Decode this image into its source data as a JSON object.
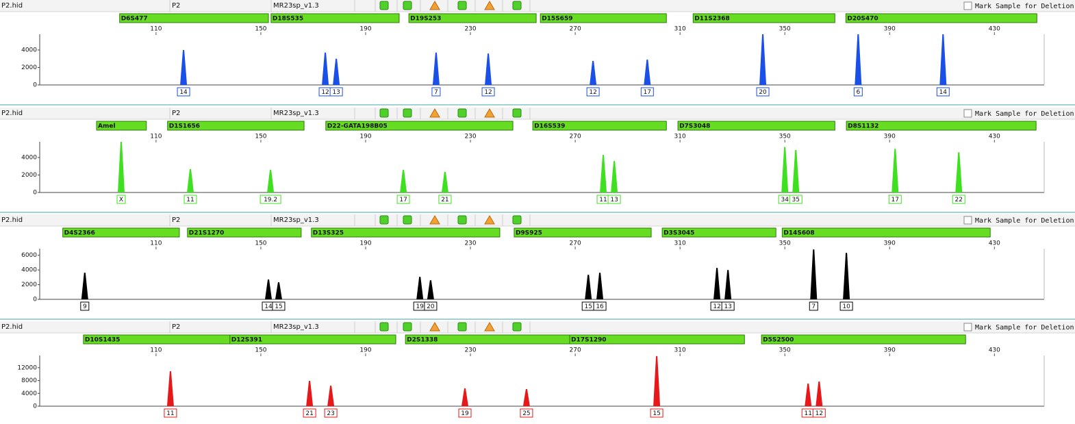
{
  "chart_data": [
    {
      "type": "peaks",
      "file": "P2.hid",
      "sample": "P2",
      "panel": "MR23sp_v1.3",
      "checkbox_label": "Mark Sample for Deletion",
      "color": "#1a4fe8",
      "markers": [
        {
          "name": "D6S477",
          "start": 96.1,
          "end": 152.9
        },
        {
          "name": "D18S535",
          "start": 153.9,
          "end": 202.8
        },
        {
          "name": "D19S253",
          "start": 206.5,
          "end": 255.1
        },
        {
          "name": "D15S659",
          "start": 256.7,
          "end": 304.8
        },
        {
          "name": "D11S2368",
          "start": 315.0,
          "end": 369.1
        },
        {
          "name": "D20S470",
          "start": 373.3,
          "end": 446.2
        }
      ],
      "xlim": [
        65.6,
        449
      ],
      "xticks": [
        110,
        150,
        190,
        230,
        270,
        310,
        350,
        390,
        430
      ],
      "ylim": [
        0,
        5800
      ],
      "yticks": [
        0,
        2000,
        4000
      ],
      "peaks": [
        {
          "x": 120.5,
          "height": 4000,
          "allele": "14"
        },
        {
          "x": 174.6,
          "height": 3700,
          "allele": "12"
        },
        {
          "x": 178.8,
          "height": 3000,
          "allele": "13"
        },
        {
          "x": 216.9,
          "height": 3700,
          "allele": "7"
        },
        {
          "x": 236.8,
          "height": 3600,
          "allele": "12"
        },
        {
          "x": 276.8,
          "height": 2750,
          "allele": "12"
        },
        {
          "x": 297.5,
          "height": 2900,
          "allele": "17"
        },
        {
          "x": 341.6,
          "height": 5800,
          "allele": "20"
        },
        {
          "x": 378.0,
          "height": 5800,
          "allele": "6"
        },
        {
          "x": 410.4,
          "height": 5800,
          "allele": "14"
        }
      ]
    },
    {
      "type": "peaks",
      "file": "P2.hid",
      "sample": "P2",
      "panel": "MR23sp_v1.3",
      "checkbox_label": "Mark Sample for Deletion",
      "color": "#3fe020",
      "markers": [
        {
          "name": "Amel",
          "start": 87.3,
          "end": 106.3
        },
        {
          "name": "D1S1656",
          "start": 114.4,
          "end": 166.5
        },
        {
          "name": "D22-GATA198B05",
          "start": 174.8,
          "end": 246.2
        },
        {
          "name": "D16S539",
          "start": 253.8,
          "end": 304.8
        },
        {
          "name": "D7S3048",
          "start": 309.2,
          "end": 369.1
        },
        {
          "name": "D8S1132",
          "start": 373.5,
          "end": 445.9
        }
      ],
      "xlim": [
        65.6,
        449
      ],
      "xticks": [
        110,
        150,
        190,
        230,
        270,
        310,
        350,
        390,
        430
      ],
      "ylim": [
        0,
        5800
      ],
      "yticks": [
        0,
        2000,
        4000
      ],
      "peaks": [
        {
          "x": 96.7,
          "height": 5800,
          "allele": "X"
        },
        {
          "x": 123.1,
          "height": 2670,
          "allele": "11"
        },
        {
          "x": 153.7,
          "height": 2600,
          "allele": "19.2"
        },
        {
          "x": 204.4,
          "height": 2600,
          "allele": "17"
        },
        {
          "x": 220.3,
          "height": 2350,
          "allele": "21"
        },
        {
          "x": 280.7,
          "height": 4300,
          "allele": "11"
        },
        {
          "x": 284.9,
          "height": 3600,
          "allele": "13"
        },
        {
          "x": 350.0,
          "height": 5200,
          "allele": "34"
        },
        {
          "x": 354.2,
          "height": 4860,
          "allele": "35"
        },
        {
          "x": 392.1,
          "height": 5000,
          "allele": "17"
        },
        {
          "x": 416.4,
          "height": 4600,
          "allele": "22"
        }
      ]
    },
    {
      "type": "peaks",
      "file": "P2.hid",
      "sample": "P2",
      "panel": "MR23sp_v1.3",
      "checkbox_label": "Mark Sample for Deletion",
      "color": "#000000",
      "markers": [
        {
          "name": "D4S2366",
          "start": 74.4,
          "end": 118.9
        },
        {
          "name": "D21S1270",
          "start": 122.0,
          "end": 165.4
        },
        {
          "name": "D13S325",
          "start": 169.3,
          "end": 241.2
        },
        {
          "name": "D9S925",
          "start": 246.7,
          "end": 299.0
        },
        {
          "name": "D3S3045",
          "start": 303.2,
          "end": 346.6
        },
        {
          "name": "D14S608",
          "start": 349.0,
          "end": 428.4
        }
      ],
      "xlim": [
        65.6,
        449
      ],
      "xticks": [
        110,
        150,
        190,
        230,
        270,
        310,
        350,
        390,
        430
      ],
      "ylim": [
        0,
        6900
      ],
      "yticks": [
        0,
        2000,
        4000,
        6000
      ],
      "peaks": [
        {
          "x": 82.8,
          "height": 3630,
          "allele": "9"
        },
        {
          "x": 152.9,
          "height": 2700,
          "allele": "14"
        },
        {
          "x": 156.8,
          "height": 2330,
          "allele": "15"
        },
        {
          "x": 210.7,
          "height": 3070,
          "allele": "19"
        },
        {
          "x": 214.8,
          "height": 2600,
          "allele": "20"
        },
        {
          "x": 275.0,
          "height": 3350,
          "allele": "15"
        },
        {
          "x": 279.4,
          "height": 3630,
          "allele": "16"
        },
        {
          "x": 324.1,
          "height": 4280,
          "allele": "12"
        },
        {
          "x": 328.3,
          "height": 4000,
          "allele": "13"
        },
        {
          "x": 361.0,
          "height": 6790,
          "allele": "7"
        },
        {
          "x": 373.5,
          "height": 6330,
          "allele": "10"
        }
      ]
    },
    {
      "type": "peaks",
      "file": "P2.hid",
      "sample": "P2",
      "panel": "MR23sp_v1.3",
      "checkbox_label": "Mark Sample for Deletion",
      "color": "#e8181a",
      "markers": [
        {
          "name": "D10S1435",
          "start": 82.3,
          "end": 138.2
        },
        {
          "name": "D12S391",
          "start": 138.2,
          "end": 201.5
        },
        {
          "name": "D2S1338",
          "start": 205.2,
          "end": 267.9
        },
        {
          "name": "D17S1290",
          "start": 267.9,
          "end": 334.6
        },
        {
          "name": "D5S2500",
          "start": 341.1,
          "end": 419.0
        }
      ],
      "xlim": [
        65.6,
        449
      ],
      "xticks": [
        110,
        150,
        190,
        230,
        270,
        310,
        350,
        390,
        430
      ],
      "ylim": [
        0,
        15800
      ],
      "yticks": [
        0,
        4000,
        8000,
        12000
      ],
      "peaks": [
        {
          "x": 115.5,
          "height": 10900,
          "allele": "11"
        },
        {
          "x": 168.6,
          "height": 7900,
          "allele": "21"
        },
        {
          "x": 176.7,
          "height": 6400,
          "allele": "23"
        },
        {
          "x": 227.9,
          "height": 5560,
          "allele": "19"
        },
        {
          "x": 251.4,
          "height": 5350,
          "allele": "25"
        },
        {
          "x": 301.1,
          "height": 15600,
          "allele": "15"
        },
        {
          "x": 358.9,
          "height": 7060,
          "allele": "11"
        },
        {
          "x": 363.1,
          "height": 7700,
          "allele": "12"
        }
      ]
    }
  ]
}
